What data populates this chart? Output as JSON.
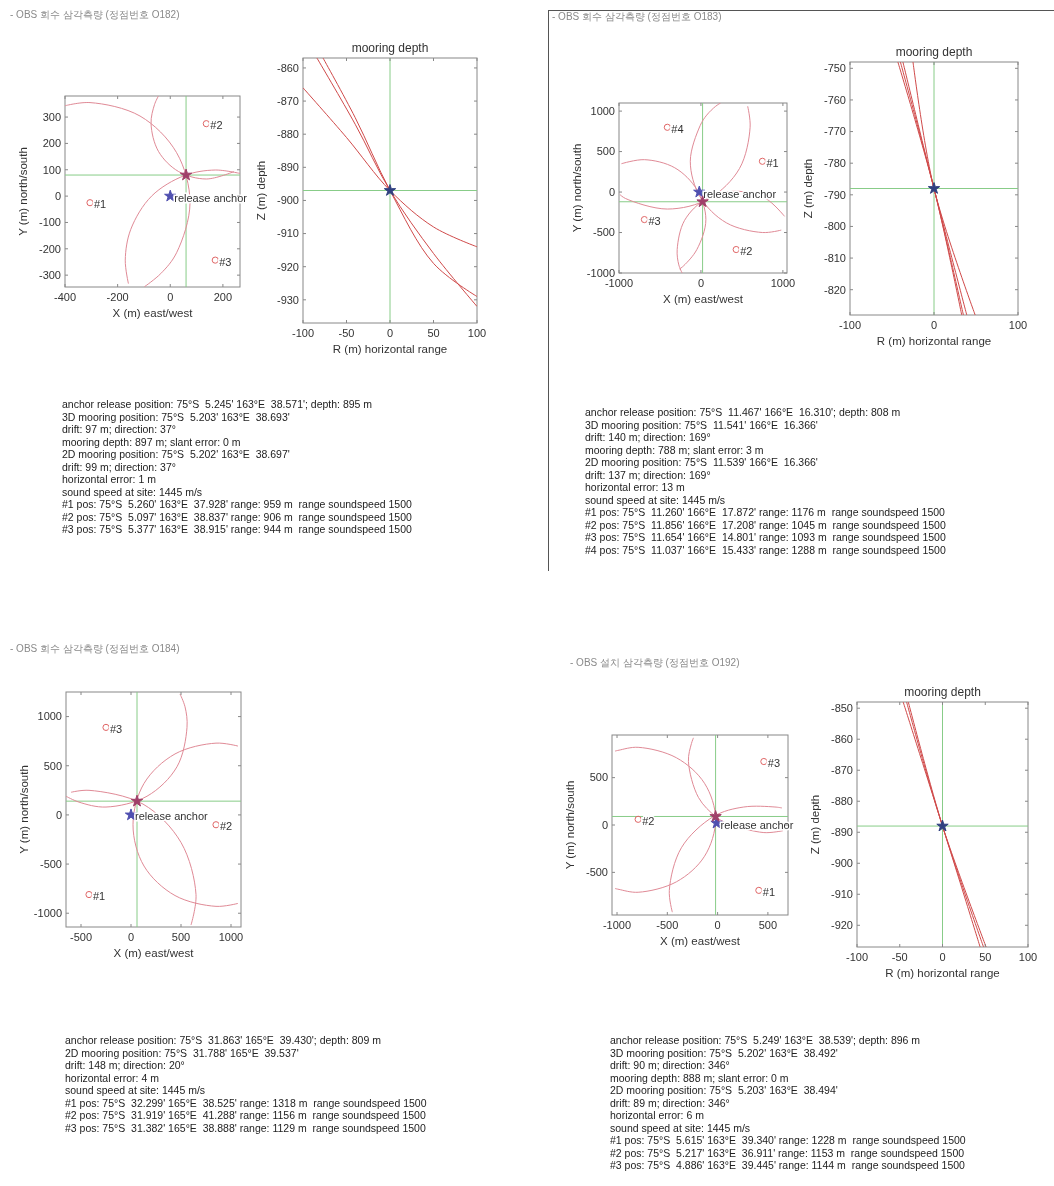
{
  "chart_data": [
    {
      "type": "scatter",
      "title": "- OBS 회수 삼각측량 (정점번호 O182)",
      "xlabel": "X (m) east/west",
      "ylabel": "Y (m) north/south",
      "xlim": [
        -400,
        265
      ],
      "ylim": [
        -345,
        380
      ],
      "xticks": [
        -400,
        -200,
        0,
        200
      ],
      "yticks": [
        -300,
        -200,
        -100,
        0,
        100,
        200,
        300
      ],
      "ref_lines": [
        {
          "axis": "x",
          "value": 60,
          "color": "#88cc88"
        },
        {
          "axis": "y",
          "value": 80,
          "color": "#88cc88"
        }
      ],
      "series": [
        {
          "type": "line",
          "color": "#e08a96",
          "x": [
            -98,
            -36,
            24,
            75,
            24,
            -115,
            -305,
            -400
          ],
          "values": [
            -344,
            -294,
            -215,
            -25,
            165,
            304,
            355,
            343
          ]
        },
        {
          "type": "line",
          "color": "#e08a96",
          "x": [
            -45,
            -60,
            -73,
            -45,
            32,
            137,
            242
          ],
          "values": [
            380,
            347,
            275,
            170,
            93,
            65,
            93
          ]
        },
        {
          "type": "line",
          "color": "#e08a96",
          "x": [
            265,
            171,
            54,
            -71,
            -150,
            -171,
            -159
          ],
          "values": [
            86,
            99,
            78,
            0,
            -126,
            -243,
            -332
          ]
        },
        {
          "name": "#1",
          "color": "#e06666",
          "marker": "circle",
          "x": [
            -305
          ],
          "values": [
            -25
          ]
        },
        {
          "name": "#2",
          "color": "#e06666",
          "marker": "circle",
          "x": [
            137
          ],
          "values": [
            275
          ]
        },
        {
          "name": "#3",
          "color": "#e06666",
          "marker": "circle",
          "x": [
            171
          ],
          "values": [
            -243
          ]
        },
        {
          "name": "release anchor",
          "color": "#5050b0",
          "marker": "star",
          "x": [
            0
          ],
          "values": [
            0
          ]
        },
        {
          "color": "#a0406a",
          "marker": "star",
          "x": [
            60
          ],
          "values": [
            80
          ]
        }
      ],
      "annotations": [
        "anchor release position: 75°S  5.245' 163°E  38.571'; depth: 895 m",
        "3D mooring position: 75°S  5.203' 163°E  38.693'",
        "drift: 97 m; direction: 37°",
        "mooring depth: 897 m; slant error: 0 m",
        "2D mooring position: 75°S  5.202' 163°E  38.697'",
        "drift: 99 m; direction: 37°",
        "horizontal error: 1 m",
        "sound speed at site: 1445 m/s",
        "#1 pos: 75°S  5.260' 163°E  37.928' range: 959 m  range soundspeed 1500",
        "#2 pos: 75°S  5.097' 163°E  38.837' range: 906 m  range soundspeed 1500",
        "#3 pos: 75°S  5.377' 163°E  38.915' range: 944 m  range soundspeed 1500"
      ]
    },
    {
      "type": "line",
      "title": "mooring depth",
      "xlabel": "R (m) horizontal range",
      "ylabel": "Z (m) depth",
      "xlim": [
        -100,
        100
      ],
      "ylim": [
        -937,
        -857
      ],
      "xticks": [
        -100,
        -50,
        0,
        50,
        100
      ],
      "yticks": [
        -930,
        -920,
        -910,
        -900,
        -890,
        -880,
        -870,
        -860
      ],
      "ref_lines": [
        {
          "axis": "x",
          "value": 0,
          "color": "#88cc88"
        },
        {
          "axis": "y",
          "value": -897,
          "color": "#88cc88"
        }
      ],
      "series": [
        {
          "color": "#d04a4a",
          "x": [
            -100,
            -50,
            0,
            50,
            100
          ],
          "values": [
            -866,
            -881,
            -897,
            -908,
            -914
          ]
        },
        {
          "color": "#d04a4a",
          "x": [
            -84,
            -40,
            0,
            50,
            100
          ],
          "values": [
            -857,
            -877,
            -897,
            -916,
            -932
          ]
        },
        {
          "color": "#d04a4a",
          "x": [
            -77,
            -40,
            0,
            50,
            100
          ],
          "values": [
            -857,
            -875,
            -897,
            -919,
            -929
          ]
        },
        {
          "type": "scatter",
          "color": "#304080",
          "marker": "star",
          "x": [
            0
          ],
          "values": [
            -897
          ]
        }
      ]
    },
    {
      "type": "scatter",
      "title": "- OBS 회수 삼각측량 (정점번호 O183)",
      "xlabel": "X (m) east/west",
      "ylabel": "Y (m) north/south",
      "xlim": [
        -1000,
        1050
      ],
      "ylim": [
        -1000,
        1100
      ],
      "xticks": [
        -1000,
        0,
        1000
      ],
      "yticks": [
        -1000,
        -500,
        0,
        500,
        1000
      ],
      "ref_lines": [
        {
          "axis": "x",
          "value": 20,
          "color": "#88cc88"
        },
        {
          "axis": "y",
          "value": -120,
          "color": "#88cc88"
        }
      ],
      "series": [
        {
          "type": "line",
          "color": "#e08a96",
          "x": [
            240,
            180,
            70,
            -10,
            -130,
            -10,
            310,
            750,
            980
          ],
          "values": [
            1100,
            1060,
            950,
            820,
            380,
            -60,
            -380,
            -500,
            -470
          ]
        },
        {
          "type": "line",
          "color": "#e08a96",
          "x": [
            1020,
            790,
            430,
            70,
            -200,
            -290,
            -270,
            -230
          ],
          "values": [
            -300,
            -80,
            10,
            -80,
            -350,
            -710,
            -900,
            -1000
          ]
        },
        {
          "type": "line",
          "color": "#e08a96",
          "x": [
            -260,
            -210,
            -50,
            60,
            -50,
            -320,
            -690,
            -970
          ],
          "values": [
            -950,
            -910,
            -710,
            -340,
            30,
            300,
            400,
            350
          ]
        },
        {
          "type": "line",
          "color": "#e08a96",
          "x": [
            -990,
            -920,
            -410,
            100,
            470,
            600,
            570
          ],
          "values": [
            -30,
            -80,
            -210,
            -80,
            290,
            800,
            1060
          ]
        },
        {
          "name": "#1",
          "color": "#e06666",
          "marker": "circle",
          "x": [
            750
          ],
          "values": [
            380
          ]
        },
        {
          "name": "#2",
          "color": "#e06666",
          "marker": "circle",
          "x": [
            430
          ],
          "values": [
            -710
          ]
        },
        {
          "name": "#3",
          "color": "#e06666",
          "marker": "circle",
          "x": [
            -690
          ],
          "values": [
            -340
          ]
        },
        {
          "name": "#4",
          "color": "#e06666",
          "marker": "circle",
          "x": [
            -410
          ],
          "values": [
            800
          ]
        },
        {
          "name": "release anchor",
          "color": "#5050b0",
          "marker": "star",
          "x": [
            -20
          ],
          "values": [
            0
          ]
        },
        {
          "color": "#a0406a",
          "marker": "star",
          "x": [
            20
          ],
          "values": [
            -120
          ]
        }
      ],
      "annotations": [
        "anchor release position: 75°S  11.467' 166°E  16.310'; depth: 808 m",
        "3D mooring position: 75°S  11.541' 166°E  16.366'",
        "drift: 140 m; direction: 169°",
        "mooring depth: 788 m; slant error: 3 m",
        "2D mooring position: 75°S  11.539' 166°E  16.366'",
        "drift: 137 m; direction: 169°",
        "horizontal error: 13 m",
        "sound speed at site: 1445 m/s",
        "#1 pos: 75°S  11.260' 166°E  17.872' range: 1176 m  range soundspeed 1500",
        "#2 pos: 75°S  11.856' 166°E  17.208' range: 1045 m  range soundspeed 1500",
        "#3 pos: 75°S  11.654' 166°E  14.801' range: 1093 m  range soundspeed 1500",
        "#4 pos: 75°S  11.037' 166°E  15.433' range: 1288 m  range soundspeed 1500"
      ]
    },
    {
      "type": "line",
      "title": "mooring depth",
      "xlabel": "R (m) horizontal range",
      "ylabel": "Z (m) depth",
      "xlim": [
        -100,
        100
      ],
      "ylim": [
        -828,
        -748
      ],
      "xticks": [
        -100,
        0,
        100
      ],
      "yticks": [
        -820,
        -810,
        -800,
        -790,
        -780,
        -770,
        -760,
        -750
      ],
      "ref_lines": [
        {
          "axis": "x",
          "value": 0,
          "color": "#88cc88"
        },
        {
          "axis": "y",
          "value": -788,
          "color": "#88cc88"
        }
      ],
      "series": [
        {
          "color": "#d04a4a",
          "x": [
            -43,
            0,
            33
          ],
          "values": [
            -748,
            -788,
            -828
          ]
        },
        {
          "color": "#d04a4a",
          "x": [
            -37,
            0,
            39
          ],
          "values": [
            -748,
            -788,
            -828
          ]
        },
        {
          "color": "#d04a4a",
          "x": [
            -25,
            0,
            49
          ],
          "values": [
            -748,
            -788,
            -828
          ]
        },
        {
          "color": "#d04a4a",
          "x": [
            -40,
            0,
            35
          ],
          "values": [
            -748,
            -788,
            -828
          ]
        },
        {
          "type": "scatter",
          "color": "#304080",
          "marker": "star",
          "x": [
            0
          ],
          "values": [
            -788
          ]
        }
      ]
    },
    {
      "type": "scatter",
      "title": "- OBS 회수 삼각측량 (정점번호 O184)",
      "xlabel": "X (m) east/west",
      "ylabel": "Y (m) north/south",
      "xlim": [
        -650,
        1100
      ],
      "ylim": [
        -1140,
        1250
      ],
      "xticks": [
        -500,
        0,
        500,
        1000
      ],
      "yticks": [
        -1000,
        -500,
        0,
        500,
        1000
      ],
      "ref_lines": [
        {
          "axis": "x",
          "value": 60,
          "color": "#88cc88"
        },
        {
          "axis": "y",
          "value": 140,
          "color": "#88cc88"
        }
      ],
      "series": [
        {
          "type": "line",
          "color": "#e08a96",
          "x": [
            600,
            650,
            500,
            120,
            -420,
            -600
          ],
          "values": [
            -1120,
            -810,
            -280,
            110,
            250,
            230
          ]
        },
        {
          "type": "line",
          "color": "#e08a96",
          "x": [
            1070,
            850,
            440,
            130,
            20,
            130,
            440,
            850,
            1070
          ],
          "values": [
            700,
            730,
            620,
            320,
            -100,
            -520,
            -820,
            -930,
            -900
          ]
        },
        {
          "type": "line",
          "color": "#e08a96",
          "x": [
            -650,
            -520,
            -250,
            160,
            460,
            560,
            540,
            490
          ],
          "values": [
            190,
            130,
            80,
            190,
            490,
            890,
            1100,
            1230
          ]
        },
        {
          "name": "#1",
          "color": "#e06666",
          "marker": "circle",
          "x": [
            -420
          ],
          "values": [
            -810
          ]
        },
        {
          "name": "#2",
          "color": "#e06666",
          "marker": "circle",
          "x": [
            850
          ],
          "values": [
            -100
          ]
        },
        {
          "name": "#3",
          "color": "#e06666",
          "marker": "circle",
          "x": [
            -250
          ],
          "values": [
            890
          ]
        },
        {
          "name": "release anchor",
          "color": "#5050b0",
          "marker": "star",
          "x": [
            0
          ],
          "values": [
            0
          ]
        },
        {
          "color": "#a0406a",
          "marker": "star",
          "x": [
            60
          ],
          "values": [
            140
          ]
        }
      ],
      "annotations": [
        "anchor release position: 75°S  31.863' 165°E  39.430'; depth: 809 m",
        "2D mooring position: 75°S  31.788' 165°E  39.537'",
        "drift: 148 m; direction: 20°",
        "horizontal error: 4 m",
        "sound speed at site: 1445 m/s",
        "#1 pos: 75°S  32.299' 165°E  38.525' range: 1318 m  range soundspeed 1500",
        "#2 pos: 75°S  31.919' 165°E  41.288' range: 1156 m  range soundspeed 1500",
        "#3 pos: 75°S  31.382' 165°E  38.888' range: 1129 m  range soundspeed 1500"
      ]
    },
    {
      "type": "scatter",
      "title": "- OBS 설치 삼각측량 (정점번호 O192)",
      "xlabel": "X (m) east/west",
      "ylabel": "Y (m) north/south",
      "xlim": [
        -1050,
        700
      ],
      "ylim": [
        -950,
        950
      ],
      "xticks": [
        -1000,
        -500,
        0,
        500
      ],
      "yticks": [
        -500,
        0,
        500
      ],
      "ref_lines": [
        {
          "axis": "x",
          "value": -20,
          "color": "#88cc88"
        },
        {
          "axis": "y",
          "value": 90,
          "color": "#88cc88"
        }
      ],
      "series": [
        {
          "type": "line",
          "color": "#e08a96",
          "x": [
            640,
            570,
            260,
            -40,
            -360,
            -480,
            -450
          ],
          "values": [
            180,
            190,
            190,
            90,
            -240,
            -690,
            -920
          ]
        },
        {
          "type": "line",
          "color": "#e08a96",
          "x": [
            -1020,
            -980,
            -790,
            -410,
            -130,
            -20,
            -130,
            -410,
            -790,
            -980,
            -1020
          ],
          "values": [
            -670,
            -680,
            -710,
            -600,
            -330,
            60,
            440,
            710,
            820,
            790,
            780
          ]
        },
        {
          "type": "line",
          "color": "#e08a96",
          "x": [
            -240,
            -260,
            -290,
            -190,
            -20,
            90,
            460,
            650
          ],
          "values": [
            920,
            860,
            670,
            290,
            90,
            20,
            -80,
            -60
          ]
        },
        {
          "name": "#1",
          "color": "#e06666",
          "marker": "circle",
          "x": [
            410
          ],
          "values": [
            -690
          ]
        },
        {
          "name": "#2",
          "color": "#e06666",
          "marker": "circle",
          "x": [
            -790
          ],
          "values": [
            60
          ]
        },
        {
          "name": "#3",
          "color": "#e06666",
          "marker": "circle",
          "x": [
            460
          ],
          "values": [
            670
          ]
        },
        {
          "name": "release anchor",
          "color": "#5050b0",
          "marker": "star",
          "x": [
            -10
          ],
          "values": [
            20
          ]
        },
        {
          "color": "#a0406a",
          "marker": "star",
          "x": [
            -20
          ],
          "values": [
            90
          ]
        }
      ],
      "annotations": [
        "anchor release position: 75°S  5.249' 163°E  38.539'; depth: 896 m",
        "3D mooring position: 75°S  5.202' 163°E  38.492'",
        "drift: 90 m; direction: 346°",
        "mooring depth: 888 m; slant error: 0 m",
        "2D mooring position: 75°S  5.203' 163°E  38.494'",
        "drift: 89 m; direction: 346°",
        "horizontal error: 6 m",
        "sound speed at site: 1445 m/s",
        "#1 pos: 75°S  5.615' 163°E  39.340' range: 1228 m  range soundspeed 1500",
        "#2 pos: 75°S  5.217' 163°E  36.911' range: 1153 m  range soundspeed 1500",
        "#3 pos: 75°S  4.886' 163°E  39.445' range: 1144 m  range soundspeed 1500"
      ]
    },
    {
      "type": "line",
      "title": "mooring depth",
      "xlabel": "R (m) horizontal range",
      "ylabel": "Z (m) depth",
      "xlim": [
        -100,
        100
      ],
      "ylim": [
        -927,
        -848
      ],
      "xticks": [
        -100,
        -50,
        0,
        50,
        100
      ],
      "yticks": [
        -920,
        -910,
        -900,
        -890,
        -880,
        -870,
        -860,
        -850
      ],
      "ref_lines": [
        {
          "axis": "x",
          "value": 0,
          "color": "#88cc88"
        },
        {
          "axis": "y",
          "value": -888,
          "color": "#88cc88"
        }
      ],
      "series": [
        {
          "color": "#d04a4a",
          "x": [
            -46,
            0,
            44
          ],
          "values": [
            -848,
            -888,
            -927
          ]
        },
        {
          "color": "#d04a4a",
          "x": [
            -42,
            0,
            51
          ],
          "values": [
            -848,
            -888,
            -927
          ]
        },
        {
          "color": "#d04a4a",
          "x": [
            -40,
            0,
            48
          ],
          "values": [
            -848,
            -888,
            -927
          ]
        },
        {
          "type": "scatter",
          "color": "#304080",
          "marker": "star",
          "x": [
            0
          ],
          "values": [
            -888
          ]
        }
      ]
    }
  ]
}
